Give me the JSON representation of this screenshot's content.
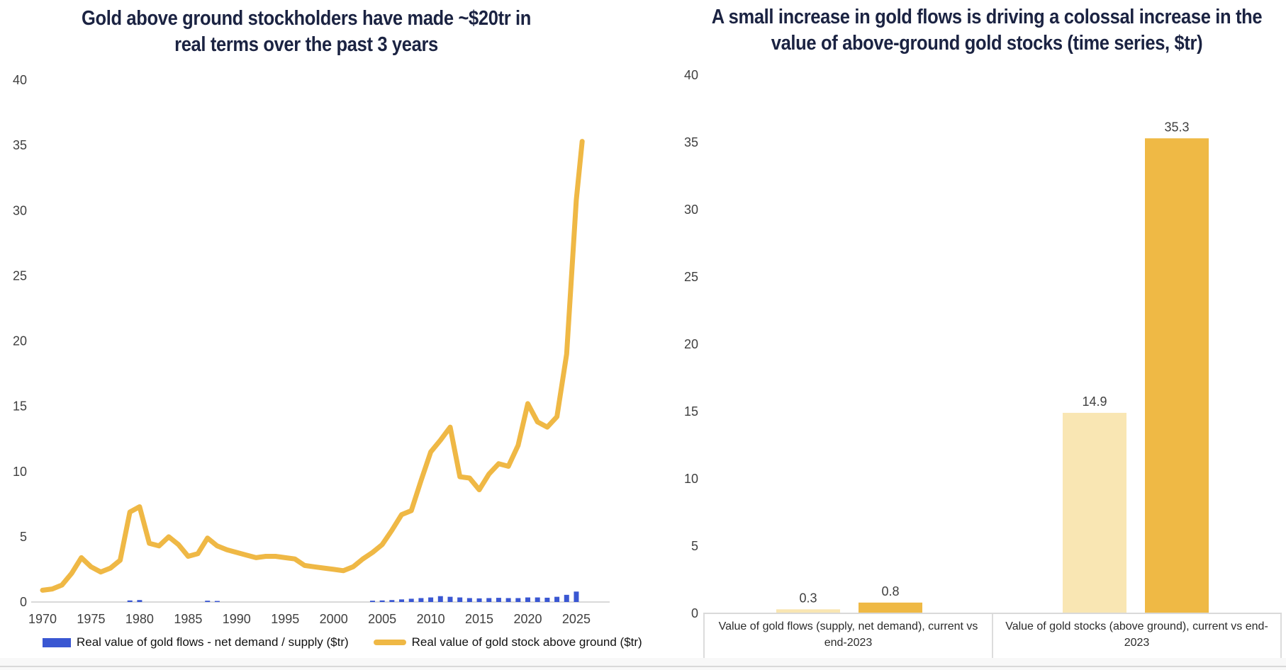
{
  "colors": {
    "title_text": "#1b2342",
    "tick_text": "#3f3f3f",
    "axis_line": "#d9d9d9",
    "flows_blue": "#3a57d2",
    "stock_gold": "#efb845",
    "bar_light_cream": "#f9e6b3",
    "bar_dark_gold": "#efb945"
  },
  "chart_data": [
    {
      "type": "line",
      "title": "Gold above ground stockholders have made ~$20tr in real terms over the past 3 years",
      "ylim": [
        0,
        40
      ],
      "y_ticks": [
        0,
        5,
        10,
        15,
        20,
        25,
        30,
        35,
        40
      ],
      "x_ticks": [
        1970,
        1975,
        1980,
        1985,
        1990,
        1995,
        2000,
        2005,
        2010,
        2015,
        2020,
        2025
      ],
      "grid": "off",
      "legend_position": "bottom",
      "series": [
        {
          "name": "Real value of gold flows - net demand / supply ($tr)",
          "type": "bar",
          "color": "#3a57d2",
          "points": [
            [
              1979,
              0.12
            ],
            [
              1980,
              0.15
            ],
            [
              1987,
              0.1
            ],
            [
              1988,
              0.08
            ],
            [
              2004,
              0.1
            ],
            [
              2005,
              0.12
            ],
            [
              2006,
              0.15
            ],
            [
              2007,
              0.2
            ],
            [
              2008,
              0.25
            ],
            [
              2009,
              0.3
            ],
            [
              2010,
              0.35
            ],
            [
              2011,
              0.45
            ],
            [
              2012,
              0.4
            ],
            [
              2013,
              0.35
            ],
            [
              2014,
              0.3
            ],
            [
              2015,
              0.28
            ],
            [
              2016,
              0.3
            ],
            [
              2017,
              0.32
            ],
            [
              2018,
              0.3
            ],
            [
              2019,
              0.3
            ],
            [
              2020,
              0.35
            ],
            [
              2021,
              0.35
            ],
            [
              2022,
              0.33
            ],
            [
              2023,
              0.4
            ],
            [
              2024,
              0.55
            ],
            [
              2025,
              0.8
            ]
          ]
        },
        {
          "name": "Real value of gold stock above ground ($tr)",
          "type": "line",
          "color": "#efb845",
          "points": [
            [
              1970,
              0.9
            ],
            [
              1971,
              1.0
            ],
            [
              1972,
              1.3
            ],
            [
              1973,
              2.2
            ],
            [
              1974,
              3.4
            ],
            [
              1975,
              2.7
            ],
            [
              1976,
              2.3
            ],
            [
              1977,
              2.6
            ],
            [
              1978,
              3.2
            ],
            [
              1979,
              6.9
            ],
            [
              1980,
              7.3
            ],
            [
              1981,
              4.5
            ],
            [
              1982,
              4.3
            ],
            [
              1983,
              5.0
            ],
            [
              1984,
              4.4
            ],
            [
              1985,
              3.5
            ],
            [
              1986,
              3.7
            ],
            [
              1987,
              4.9
            ],
            [
              1988,
              4.3
            ],
            [
              1989,
              4.0
            ],
            [
              1990,
              3.8
            ],
            [
              1991,
              3.6
            ],
            [
              1992,
              3.4
            ],
            [
              1993,
              3.5
            ],
            [
              1994,
              3.5
            ],
            [
              1995,
              3.4
            ],
            [
              1996,
              3.3
            ],
            [
              1997,
              2.8
            ],
            [
              1998,
              2.7
            ],
            [
              1999,
              2.6
            ],
            [
              2000,
              2.5
            ],
            [
              2001,
              2.4
            ],
            [
              2002,
              2.7
            ],
            [
              2003,
              3.3
            ],
            [
              2004,
              3.8
            ],
            [
              2005,
              4.4
            ],
            [
              2006,
              5.5
            ],
            [
              2007,
              6.7
            ],
            [
              2008,
              7.0
            ],
            [
              2009,
              9.3
            ],
            [
              2010,
              11.5
            ],
            [
              2011,
              12.4
            ],
            [
              2012,
              13.4
            ],
            [
              2013,
              9.6
            ],
            [
              2014,
              9.5
            ],
            [
              2015,
              8.6
            ],
            [
              2016,
              9.8
            ],
            [
              2017,
              10.6
            ],
            [
              2018,
              10.4
            ],
            [
              2019,
              12.0
            ],
            [
              2020,
              15.2
            ],
            [
              2021,
              13.8
            ],
            [
              2022,
              13.4
            ],
            [
              2023,
              14.2
            ],
            [
              2024,
              19.0
            ],
            [
              2025,
              30.8
            ],
            [
              2025.6,
              35.3
            ]
          ]
        }
      ]
    },
    {
      "type": "bar",
      "title": "A small increase in gold flows is driving a colossal increase in the value of above-ground gold stocks (time series, $tr)",
      "ylim": [
        0,
        40
      ],
      "y_ticks": [
        0,
        5,
        10,
        15,
        20,
        25,
        30,
        35,
        40
      ],
      "grid": "off",
      "groups": [
        {
          "label": "Value of gold flows (supply, net demand), current vs end-2023",
          "bars": [
            {
              "value": 0.3,
              "label": "0.3",
              "color": "#f9e6b3"
            },
            {
              "value": 0.8,
              "label": "0.8",
              "color": "#efb945"
            }
          ]
        },
        {
          "label": "Value of gold stocks (above ground), current vs end-2023",
          "bars": [
            {
              "value": 14.9,
              "label": "14.9",
              "color": "#f9e6b3"
            },
            {
              "value": 35.3,
              "label": "35.3",
              "color": "#efb945"
            }
          ]
        }
      ]
    }
  ]
}
